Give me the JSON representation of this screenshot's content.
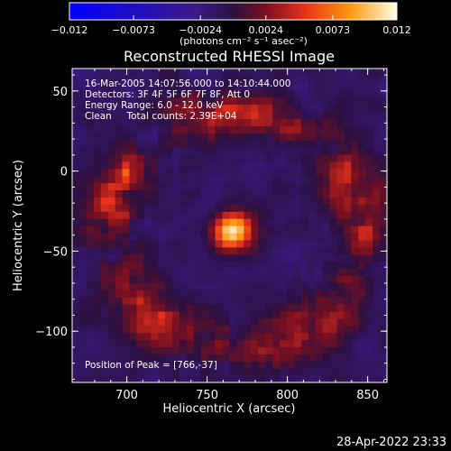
{
  "chart_data": {
    "type": "heatmap",
    "title": "Reconstructed RHESSI Image",
    "xlabel": "Heliocentric X (arcsec)",
    "ylabel": "Heliocentric Y (arcsec)",
    "xlim": [
      666,
      862
    ],
    "ylim": [
      -132,
      64
    ],
    "xticks": [
      700,
      750,
      800,
      850
    ],
    "yticks": [
      50,
      0,
      -50,
      -100
    ],
    "xtick_labels": [
      "700",
      "750",
      "800",
      "850"
    ],
    "ytick_labels": [
      "50",
      "0",
      "−50",
      "−100"
    ],
    "colorbar": {
      "min": -0.012,
      "max": 0.012,
      "ticks": [
        -0.012,
        -0.0073,
        -0.0024,
        0.0024,
        0.0073,
        0.012
      ],
      "tick_labels": [
        "−0.012",
        "−0.0073",
        "−0.0024",
        "0.0024",
        "0.0073",
        "0.012"
      ],
      "unit_label": "(photons cm⁻² s⁻¹ asec⁻²)",
      "colors": [
        "#0000ff",
        "#3c1a8a",
        "#2c1140",
        "#7a1020",
        "#e8321a",
        "#ff9a10",
        "#ffffe8"
      ]
    },
    "annotations": [
      "16-Mar-2005 14:07:56.000 to 14:10:44.000",
      "Detectors: 3F 4F 5F 6F 7F 8F, Att 0",
      "Energy Range: 6.0 - 12.0 keV",
      "Clean     Total counts: 2.39E+04"
    ],
    "peak_label": "Position of Peak = [766,-37]",
    "peak_source": {
      "x": 766,
      "y": -37,
      "value": 0.012,
      "sigma_x": 9,
      "sigma_y": 8
    },
    "ring": {
      "center_x": 768,
      "center_y": -37,
      "radius": 78,
      "value": 0.0058
    },
    "background_value": -0.0012,
    "timestamp": "28-Apr-2022 23:33"
  }
}
